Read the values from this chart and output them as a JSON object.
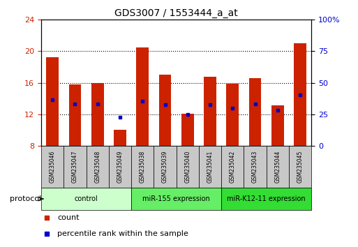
{
  "title": "GDS3007 / 1553444_a_at",
  "samples": [
    "GSM235046",
    "GSM235047",
    "GSM235048",
    "GSM235049",
    "GSM235038",
    "GSM235039",
    "GSM235040",
    "GSM235041",
    "GSM235042",
    "GSM235043",
    "GSM235044",
    "GSM235045"
  ],
  "bar_bottoms": [
    8,
    8,
    8,
    8,
    8,
    8,
    8,
    8,
    8,
    8,
    8,
    8
  ],
  "bar_tops": [
    19.2,
    15.8,
    16.0,
    10.0,
    20.5,
    17.0,
    12.1,
    16.8,
    15.9,
    16.6,
    13.1,
    21.0
  ],
  "blue_positions": [
    13.8,
    13.3,
    13.3,
    11.6,
    13.7,
    13.2,
    12.0,
    13.2,
    12.8,
    13.3,
    12.5,
    14.5
  ],
  "bar_color": "#cc2200",
  "blue_color": "#0000cc",
  "ylim_left": [
    8,
    24
  ],
  "ylim_right": [
    0,
    100
  ],
  "yticks_left": [
    8,
    12,
    16,
    20,
    24
  ],
  "yticks_right": [
    0,
    25,
    50,
    75,
    100
  ],
  "ytick_labels_right": [
    "0",
    "25",
    "50",
    "75",
    "100%"
  ],
  "groups": [
    {
      "label": "control",
      "start": 0,
      "end": 4,
      "color": "#ccffcc"
    },
    {
      "label": "miR-155 expression",
      "start": 4,
      "end": 8,
      "color": "#66ee66"
    },
    {
      "label": "miR-K12-11 expression",
      "start": 8,
      "end": 12,
      "color": "#33dd33"
    }
  ],
  "protocol_label": "protocol",
  "legend_count_color": "#cc2200",
  "legend_percentile_color": "#0000cc",
  "background_color": "#ffffff",
  "bar_width": 0.55,
  "gray_color": "#c8c8c8"
}
